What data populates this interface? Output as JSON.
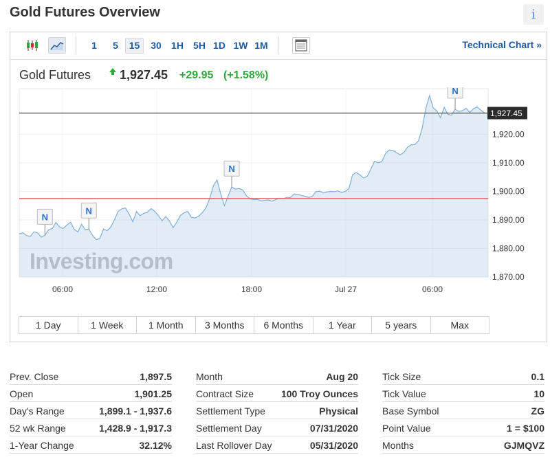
{
  "header": {
    "title": "Gold Futures Overview",
    "info_label": "i"
  },
  "toolbar": {
    "timeframes": [
      "1",
      "5",
      "15",
      "30",
      "1H",
      "5H",
      "1D",
      "1W",
      "1M"
    ],
    "active_timeframe": "15",
    "technical_chart_label": "Technical Chart »"
  },
  "quote": {
    "name": "Gold Futures",
    "price": "1,927.45",
    "change": "+29.95",
    "change_pct": "(+1.58%)",
    "direction": "up",
    "up_color": "#2fa83a"
  },
  "chart_data": {
    "type": "area",
    "x_tick_labels": [
      "06:00",
      "12:00",
      "18:00",
      "Jul 27",
      "06:00"
    ],
    "y_tick_labels": [
      "1,920.00",
      "1,910.00",
      "1,900.00",
      "1,890.00",
      "1,880.00",
      "1,870.00"
    ],
    "ylim": [
      1870,
      1936
    ],
    "current_price": 1927.45,
    "current_price_label": "1,927.45",
    "prev_close": 1897.5,
    "watermark": "Investing.com",
    "news_marker_label": "N",
    "series": [
      {
        "values": [
          1885.2,
          1885.5,
          1884.5,
          1884.2,
          1885.8,
          1885.5,
          1884.0,
          1884.6,
          1886.5,
          1887.0,
          1889.1,
          1887.5,
          1887.0,
          1888.2,
          1889.2,
          1886.7,
          1885.8,
          1888.5,
          1886.6,
          1886.8,
          1884.6,
          1883.1,
          1883.5,
          1886.8,
          1886.2,
          1887.5,
          1890.1,
          1893.0,
          1893.9,
          1894.2,
          1892.0,
          1889.4,
          1892.9,
          1891.5,
          1892.3,
          1892.7,
          1894.0,
          1893.0,
          1891.5,
          1889.7,
          1891.2,
          1889.6,
          1887.3,
          1889.2,
          1891.6,
          1892.5,
          1893.0,
          1890.9,
          1890.7,
          1891.3,
          1892.6,
          1894.3,
          1897.6,
          1902.0,
          1904.0,
          1899.2,
          1895.0,
          1898.3,
          1901.5,
          1900.8,
          1901.0,
          1900.5,
          1898.5,
          1897.4,
          1897.1,
          1897.2,
          1896.7,
          1896.8,
          1897.0,
          1896.6,
          1897.1,
          1897.6,
          1897.4,
          1897.9,
          1897.8,
          1899.1,
          1899.0,
          1898.6,
          1898.3,
          1897.9,
          1898.3,
          1899.9,
          1900.1,
          1899.5,
          1899.8,
          1900.0,
          1899.9,
          1900.2,
          1899.6,
          1900.0,
          1901.0,
          1905.9,
          1906.6,
          1905.8,
          1904.7,
          1905.3,
          1907.8,
          1910.6,
          1910.0,
          1910.5,
          1913.3,
          1914.5,
          1914.3,
          1913.6,
          1912.8,
          1913.7,
          1915.5,
          1916.3,
          1916.4,
          1917.8,
          1922.2,
          1929.1,
          1933.6,
          1929.3,
          1928.2,
          1925.8,
          1929.5,
          1927.0,
          1926.7,
          1928.8,
          1928.0,
          1928.3,
          1929.1,
          1927.7,
          1929.0,
          1929.6,
          1928.5,
          1927.5,
          1927.4
        ]
      }
    ],
    "news_marker_indices": [
      7,
      19,
      58,
      119
    ]
  },
  "ranges": [
    "1 Day",
    "1 Week",
    "1 Month",
    "3 Months",
    "6 Months",
    "1 Year",
    "5 years",
    "Max"
  ],
  "stats": {
    "col1": [
      {
        "label": "Prev. Close",
        "value": "1,897.5"
      },
      {
        "label": "Open",
        "value": "1,901.25"
      },
      {
        "label": "Day's Range",
        "value": "1,899.1 - 1,937.6"
      },
      {
        "label": "52 wk Range",
        "value": "1,428.9 - 1,917.3"
      },
      {
        "label": "1-Year Change",
        "value": "32.12%"
      }
    ],
    "col2": [
      {
        "label": "Month",
        "value": "Aug 20"
      },
      {
        "label": "Contract Size",
        "value": "100 Troy Ounces"
      },
      {
        "label": "Settlement Type",
        "value": "Physical"
      },
      {
        "label": "Settlement Day",
        "value": "07/31/2020"
      },
      {
        "label": "Last Rollover Day",
        "value": "05/31/2020"
      }
    ],
    "col3": [
      {
        "label": "Tick Size",
        "value": "0.1"
      },
      {
        "label": "Tick Value",
        "value": "10"
      },
      {
        "label": "Base Symbol",
        "value": "ZG"
      },
      {
        "label": "Point Value",
        "value": "1 = $100"
      },
      {
        "label": "Months",
        "value": "GJMQVZ"
      }
    ]
  }
}
